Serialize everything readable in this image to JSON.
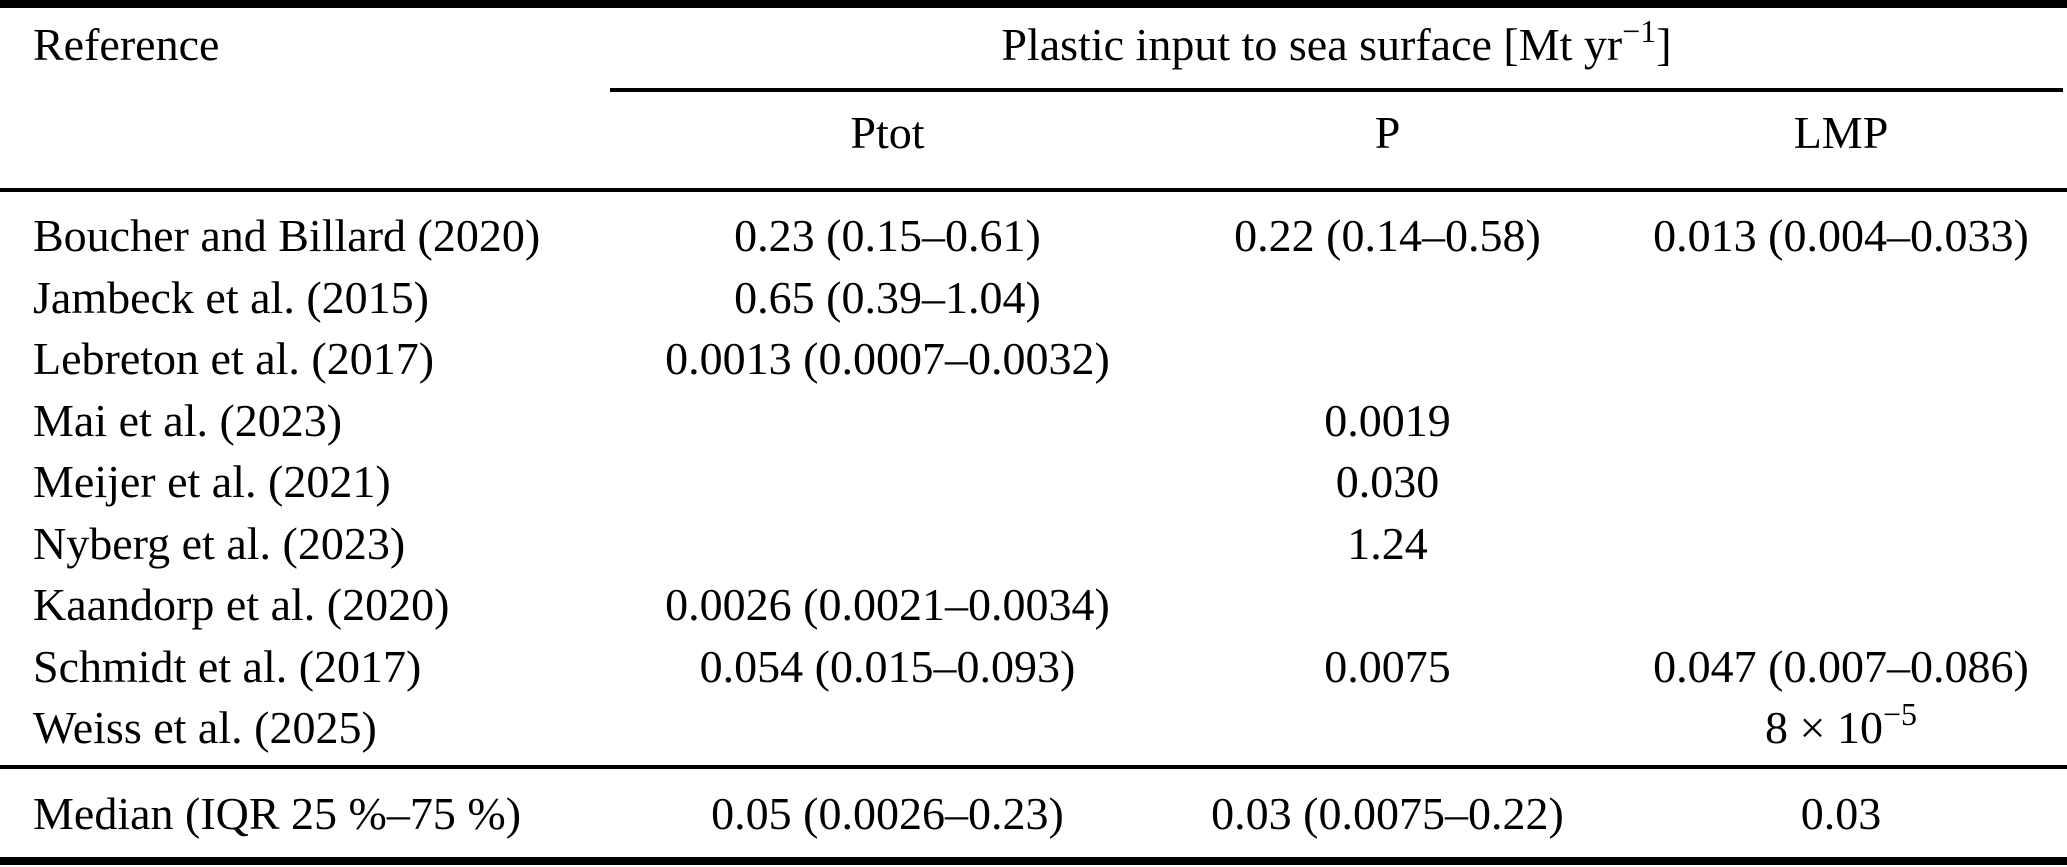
{
  "table": {
    "reference_header": "Reference",
    "group_header": {
      "pre": "Plastic input to sea surface [Mt yr",
      "sup": "−1",
      "post": "]"
    },
    "columns": {
      "c1": "Ptot",
      "c2": "P",
      "c3": "LMP"
    },
    "rows": [
      {
        "reference": "Boucher and Billard (2020)",
        "ptot": "0.23 (0.15–0.61)",
        "p": "0.22 (0.14–0.58)",
        "lmp": "0.013 (0.004–0.033)"
      },
      {
        "reference": "Jambeck et al. (2015)",
        "ptot": "0.65 (0.39–1.04)",
        "p": "",
        "lmp": ""
      },
      {
        "reference": "Lebreton et al. (2017)",
        "ptot": "0.0013 (0.0007–0.0032)",
        "p": "",
        "lmp": ""
      },
      {
        "reference": "Mai et al. (2023)",
        "ptot": "",
        "p": "0.0019",
        "lmp": ""
      },
      {
        "reference": "Meijer et al. (2021)",
        "ptot": "",
        "p": "0.030",
        "lmp": ""
      },
      {
        "reference": "Nyberg et al. (2023)",
        "ptot": "",
        "p": "1.24",
        "lmp": ""
      },
      {
        "reference": "Kaandorp et al. (2020)",
        "ptot": "0.0026 (0.0021–0.0034)",
        "p": "",
        "lmp": ""
      },
      {
        "reference": "Schmidt et al. (2017)",
        "ptot": "0.054 (0.015–0.093)",
        "p": "0.0075",
        "lmp": "0.047 (0.007–0.086)"
      },
      {
        "reference": "Weiss et al. (2025)",
        "ptot": "",
        "p": "",
        "lmp_pre": "8 × 10",
        "lmp_sup": "−5"
      }
    ],
    "summary": {
      "reference": "Median (IQR 25 %–75 %)",
      "ptot": "0.05 (0.0026–0.23)",
      "p": "0.03 (0.0075–0.22)",
      "lmp": "0.03"
    }
  }
}
